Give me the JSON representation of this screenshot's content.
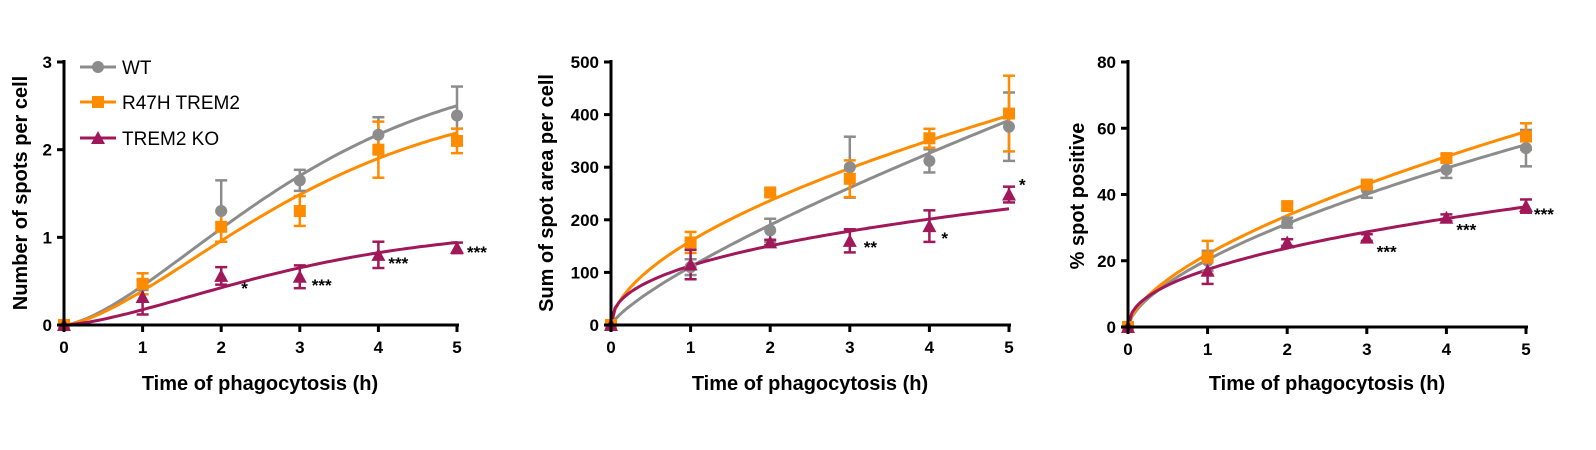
{
  "chart_data": [
    {
      "type": "line",
      "xlabel": "Time of phagocytosis (h)",
      "ylabel": "Number of spots per cell",
      "x": [
        0,
        1,
        2,
        3,
        4,
        5
      ],
      "xlim": [
        0,
        5
      ],
      "ylim": [
        0,
        3
      ],
      "xticks": [
        "0",
        "1",
        "2",
        "3",
        "4",
        "5"
      ],
      "yticks": [
        "0",
        "1",
        "2",
        "3"
      ],
      "fit": "sigmoid",
      "series": [
        {
          "name": "WT",
          "color": "#8c8c8c",
          "marker": "circle",
          "values": [
            0,
            0.45,
            1.3,
            1.65,
            2.17,
            2.39
          ],
          "errors": [
            0,
            0.05,
            0.35,
            0.12,
            0.2,
            0.33
          ]
        },
        {
          "name": "R47H TREM2",
          "color": "#ff8c00",
          "marker": "square",
          "values": [
            0,
            0.47,
            1.12,
            1.3,
            2.0,
            2.1
          ],
          "errors": [
            0,
            0.12,
            0.17,
            0.17,
            0.32,
            0.14
          ]
        },
        {
          "name": "TREM2 KO",
          "color": "#a0185a",
          "marker": "triangle",
          "values": [
            0,
            0.32,
            0.56,
            0.55,
            0.8,
            0.88
          ],
          "errors": [
            0,
            0.2,
            0.1,
            0.13,
            0.15,
            0.06
          ]
        }
      ],
      "annotations": [
        {
          "x": 2,
          "text": "*"
        },
        {
          "x": 3,
          "text": "***"
        },
        {
          "x": 4,
          "text": "***"
        },
        {
          "x": 5,
          "text": "***"
        }
      ],
      "legend": "top-left"
    },
    {
      "type": "line",
      "xlabel": "Time of phagocytosis (h)",
      "ylabel": "Sum of spot area per cell",
      "x": [
        0,
        1,
        2,
        3,
        4,
        5
      ],
      "xlim": [
        0,
        5
      ],
      "ylim": [
        0,
        500
      ],
      "xticks": [
        "0",
        "1",
        "2",
        "3",
        "4",
        "5"
      ],
      "yticks": [
        "0",
        "100",
        "200",
        "300",
        "400",
        "500"
      ],
      "fit": "power",
      "series": [
        {
          "name": "WT",
          "color": "#8c8c8c",
          "marker": "circle",
          "values": [
            0,
            110,
            180,
            300,
            312,
            377
          ],
          "errors": [
            0,
            15,
            22,
            58,
            22,
            65
          ]
        },
        {
          "name": "R47H TREM2",
          "color": "#ff8c00",
          "marker": "square",
          "values": [
            0,
            157,
            252,
            278,
            355,
            402
          ],
          "errors": [
            0,
            20,
            5,
            35,
            18,
            72
          ]
        },
        {
          "name": "TREM2 KO",
          "color": "#a0185a",
          "marker": "triangle",
          "values": [
            0,
            115,
            157,
            160,
            188,
            248
          ],
          "errors": [
            0,
            28,
            5,
            22,
            30,
            15
          ]
        }
      ],
      "annotations": [
        {
          "x": 3,
          "text": "**"
        },
        {
          "x": 4,
          "text": "*"
        },
        {
          "x": 5,
          "text": "*"
        }
      ],
      "legend": "none"
    },
    {
      "type": "line",
      "xlabel": "Time of phagocytosis (h)",
      "ylabel": "% spot positive",
      "x": [
        0,
        1,
        2,
        3,
        4,
        5
      ],
      "xlim": [
        0,
        5
      ],
      "ylim": [
        0,
        80
      ],
      "xticks": [
        "0",
        "1",
        "2",
        "3",
        "4",
        "5"
      ],
      "yticks": [
        "0",
        "20",
        "40",
        "60",
        "80"
      ],
      "fit": "power",
      "series": [
        {
          "name": "WT",
          "color": "#8c8c8c",
          "marker": "circle",
          "values": [
            0,
            20,
            31.5,
            41.5,
            47.5,
            54
          ],
          "errors": [
            0,
            3,
            1.5,
            2.5,
            2.5,
            5.5
          ]
        },
        {
          "name": "R47H TREM2",
          "color": "#ff8c00",
          "marker": "square",
          "values": [
            0,
            21,
            36.5,
            43,
            51,
            57.5
          ],
          "errors": [
            0,
            5,
            1,
            1,
            1,
            4
          ]
        },
        {
          "name": "TREM2 KO",
          "color": "#a0185a",
          "marker": "triangle",
          "values": [
            0,
            17,
            25.5,
            27,
            33,
            36.5
          ],
          "errors": [
            0,
            4,
            1,
            1,
            1,
            2
          ]
        }
      ],
      "annotations": [
        {
          "x": 3,
          "text": "***"
        },
        {
          "x": 4,
          "text": "***"
        },
        {
          "x": 5,
          "text": "***"
        }
      ],
      "legend": "none"
    }
  ]
}
